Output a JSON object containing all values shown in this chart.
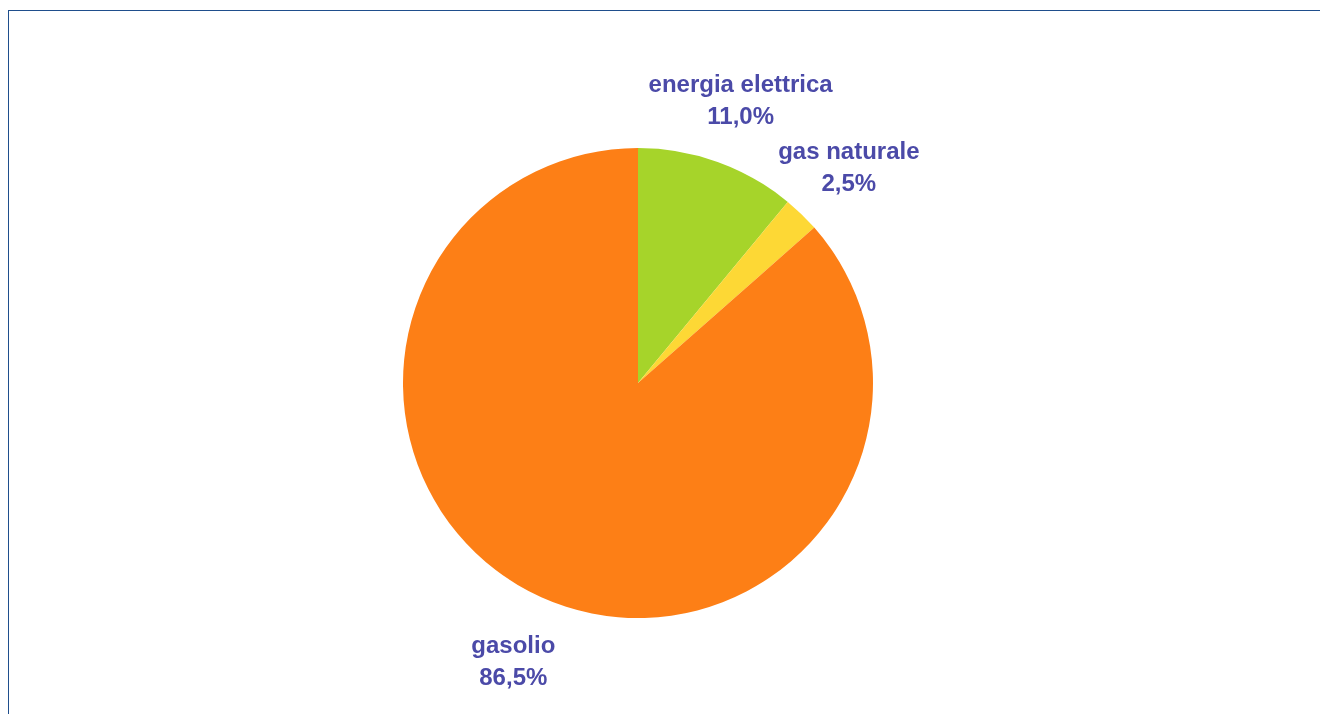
{
  "chart_data": {
    "type": "pie",
    "categories": [
      "energia elettrica",
      "gas naturale",
      "gasolio"
    ],
    "values": [
      11.0,
      2.5,
      86.5
    ],
    "colors": [
      "#a6d42a",
      "#fdd835",
      "#fd7f16"
    ],
    "value_labels": [
      "11,0%",
      "2,5%",
      "86,5%"
    ],
    "legend": false
  }
}
